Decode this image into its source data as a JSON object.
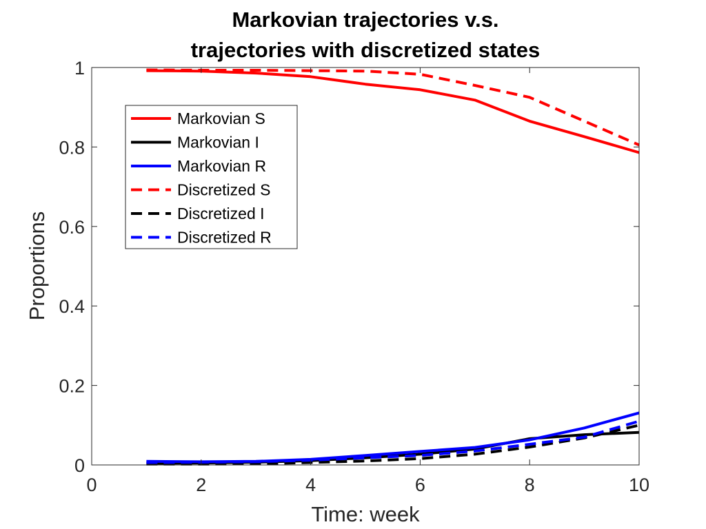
{
  "chart_data": {
    "type": "line",
    "title": [
      "Markovian trajectories v.s.",
      "trajectories with discretized states"
    ],
    "xlabel": "Time: week",
    "ylabel": "Proportions",
    "xlim": [
      0,
      10
    ],
    "ylim": [
      0,
      1
    ],
    "xticks": [
      0,
      2,
      4,
      6,
      8,
      10
    ],
    "xtick_labels": [
      "0",
      "2",
      "4",
      "6",
      "8",
      "10"
    ],
    "yticks": [
      0,
      0.2,
      0.4,
      0.6,
      0.8,
      1
    ],
    "ytick_labels": [
      "0",
      "0.2",
      "0.4",
      "0.6",
      "0.8",
      "1"
    ],
    "grid": false,
    "legend_position": "upper-left",
    "x": [
      1,
      2,
      3,
      4,
      5,
      6,
      7,
      8,
      9,
      10
    ],
    "series": [
      {
        "name": "Markovian S",
        "color": "#ff0000",
        "dash": "solid",
        "values": [
          0.992,
          0.991,
          0.986,
          0.977,
          0.958,
          0.944,
          0.918,
          0.865,
          0.826,
          0.786
        ]
      },
      {
        "name": "Markovian I",
        "color": "#000000",
        "dash": "solid",
        "values": [
          0.004,
          0.005,
          0.007,
          0.011,
          0.018,
          0.027,
          0.04,
          0.066,
          0.076,
          0.082
        ]
      },
      {
        "name": "Markovian R",
        "color": "#0000ff",
        "dash": "solid",
        "values": [
          0.009,
          0.008,
          0.009,
          0.014,
          0.024,
          0.034,
          0.044,
          0.063,
          0.093,
          0.131
        ]
      },
      {
        "name": "Discretized S",
        "color": "#ff0000",
        "dash": "dashed",
        "values": [
          0.994,
          0.993,
          0.993,
          0.992,
          0.991,
          0.983,
          0.955,
          0.925,
          0.865,
          0.805
        ]
      },
      {
        "name": "Discretized I",
        "color": "#000000",
        "dash": "dashed",
        "values": [
          0.002,
          0.002,
          0.003,
          0.006,
          0.01,
          0.016,
          0.027,
          0.045,
          0.068,
          0.1
        ]
      },
      {
        "name": "Discretized R",
        "color": "#0000ff",
        "dash": "dashed",
        "values": [
          0.006,
          0.007,
          0.008,
          0.012,
          0.018,
          0.024,
          0.035,
          0.052,
          0.07,
          0.11
        ]
      }
    ]
  }
}
